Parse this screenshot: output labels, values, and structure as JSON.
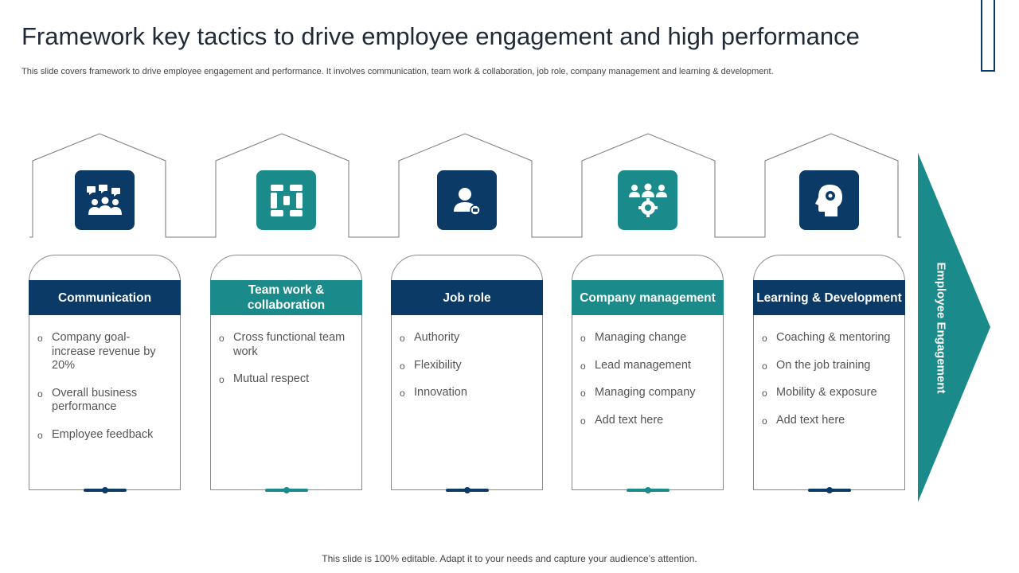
{
  "header": {
    "title": "Framework key tactics to drive employee engagement and high performance",
    "subtitle": "This slide covers framework to drive  employee engagement and performance. It involves communication, team work & collaboration, job role, company management and learning & development."
  },
  "colors": {
    "navy": "#0b3a66",
    "teal": "#1b8a8a"
  },
  "icons": {
    "communication": "group-chat-icon",
    "teamwork": "puzzle-hands-icon",
    "jobrole": "person-badge-icon",
    "management": "team-gear-icon",
    "learning": "head-gear-icon"
  },
  "cards": [
    {
      "title": "Communication",
      "items": [
        "Company goal- increase revenue by 20%",
        "Overall business performance",
        "Employee feedback"
      ]
    },
    {
      "title": "Team work & collaboration",
      "items": [
        "Cross functional team work",
        "Mutual respect"
      ]
    },
    {
      "title": "Job role",
      "items": [
        "Authority",
        "Flexibility",
        "Innovation"
      ]
    },
    {
      "title": "Company management",
      "items": [
        "Managing change",
        "Lead management",
        "Managing company",
        "Add text here"
      ]
    },
    {
      "title": "Learning & Development",
      "items": [
        "Coaching & mentoring",
        "On the job training",
        "Mobility  & exposure",
        "Add text here"
      ]
    }
  ],
  "arrow": {
    "label": "Employee Engagement"
  },
  "footer": {
    "text": "This slide is 100% editable. Adapt it to your needs and capture your audience’s attention."
  }
}
